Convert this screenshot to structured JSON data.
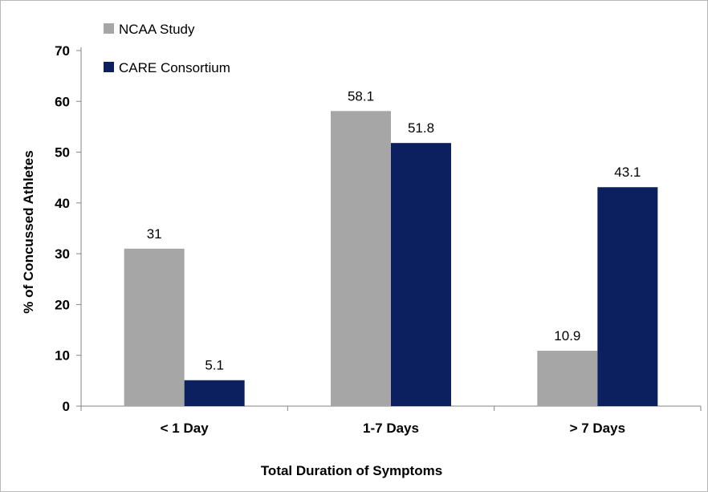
{
  "chart_data": {
    "type": "bar",
    "title": "",
    "xlabel": "Total Duration of Symptoms",
    "ylabel": "% of Concussed Athletes",
    "categories": [
      "< 1 Day",
      "1-7 Days",
      "> 7 Days"
    ],
    "ylim": [
      0,
      70
    ],
    "yticks": [
      0,
      10,
      20,
      30,
      40,
      50,
      60,
      70
    ],
    "series": [
      {
        "name": "NCAA Study",
        "values": [
          31,
          58.1,
          10.9
        ],
        "value_labels": [
          "31",
          "58.1",
          "10.9"
        ],
        "color": "#a6a6a6"
      },
      {
        "name": "CARE Consortium",
        "values": [
          5.1,
          51.8,
          43.1
        ],
        "value_labels": [
          "5.1",
          "51.8",
          "43.1"
        ],
        "color": "#0c1f5f"
      }
    ],
    "legend_position": "top-left",
    "grid": false
  }
}
